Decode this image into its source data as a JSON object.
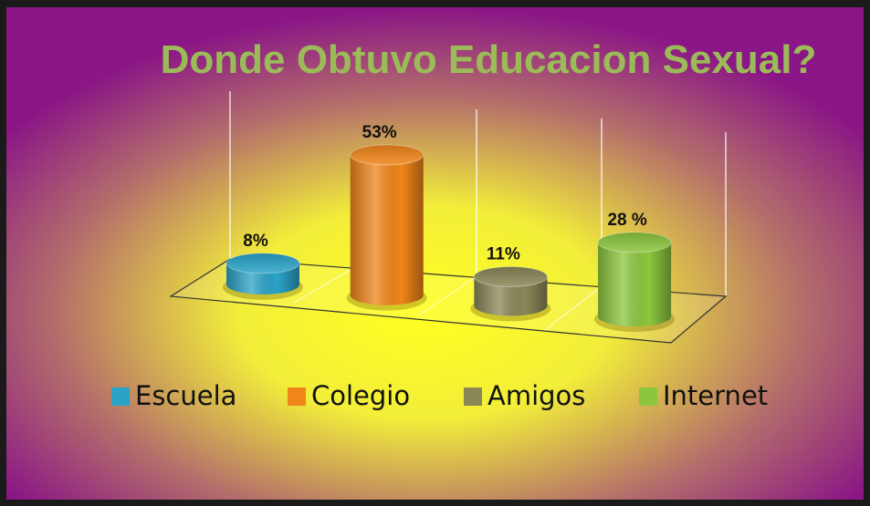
{
  "chart_data": {
    "type": "bar",
    "title": "Donde Obtuvo Educacion Sexual?",
    "categories": [
      "Escuela",
      "Colegio",
      "Amigos",
      "Internet"
    ],
    "values": [
      8,
      53,
      11,
      28
    ],
    "value_labels": [
      "8%",
      "53%",
      "11%",
      "28 %"
    ],
    "colors": [
      "#2ba3c8",
      "#f0851a",
      "#8a8757",
      "#8cc63e"
    ],
    "legend": "bottom"
  }
}
